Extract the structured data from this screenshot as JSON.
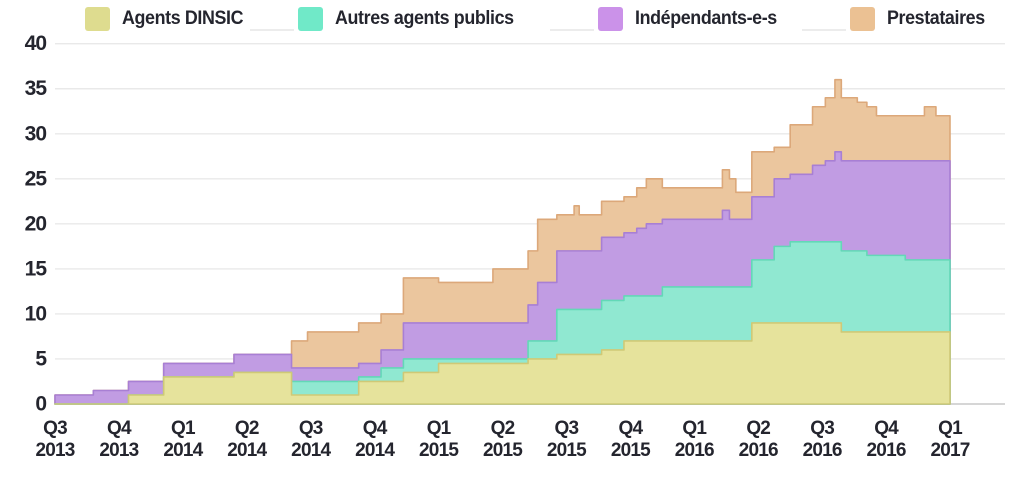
{
  "legend": {
    "items": [
      {
        "label": "Agents DINSIC",
        "color": "#dedc8f"
      },
      {
        "label": "Autres agents publics",
        "color": "#70e9c8"
      },
      {
        "label": "Indépendants-e-s",
        "color": "#cb92e9"
      },
      {
        "label": "Prestataires",
        "color": "#ebc193"
      }
    ]
  },
  "y_axis": {
    "ticks": [
      0,
      5,
      10,
      15,
      20,
      25,
      30,
      35,
      40
    ]
  },
  "x_axis": {
    "ticks": [
      {
        "quarter": "Q3",
        "year": "2013"
      },
      {
        "quarter": "Q4",
        "year": "2013"
      },
      {
        "quarter": "Q1",
        "year": "2014"
      },
      {
        "quarter": "Q2",
        "year": "2014"
      },
      {
        "quarter": "Q3",
        "year": "2014"
      },
      {
        "quarter": "Q4",
        "year": "2014"
      },
      {
        "quarter": "Q1",
        "year": "2015"
      },
      {
        "quarter": "Q2",
        "year": "2015"
      },
      {
        "quarter": "Q3",
        "year": "2015"
      },
      {
        "quarter": "Q4",
        "year": "2015"
      },
      {
        "quarter": "Q1",
        "year": "2016"
      },
      {
        "quarter": "Q2",
        "year": "2016"
      },
      {
        "quarter": "Q3",
        "year": "2016"
      },
      {
        "quarter": "Q4",
        "year": "2016"
      },
      {
        "quarter": "Q1",
        "year": "2017"
      }
    ]
  },
  "chart_data": {
    "type": "area",
    "stacked": true,
    "interpolation": "step-after",
    "title": "",
    "xlabel": "",
    "ylabel": "",
    "ylim": [
      0,
      40
    ],
    "grid": true,
    "legend_position": "top",
    "x_unit": "quarters since Q3 2013 (fractional = intra-quarter step changes)",
    "x_range": [
      0,
      14
    ],
    "x": [
      0.0,
      0.6,
      1.15,
      1.7,
      2.8,
      3.7,
      3.95,
      4.75,
      5.1,
      5.45,
      6.0,
      6.85,
      7.4,
      7.55,
      7.85,
      8.12,
      8.2,
      8.55,
      8.9,
      9.1,
      9.25,
      9.5,
      10.44,
      10.55,
      10.65,
      10.9,
      11.25,
      11.5,
      11.85,
      12.05,
      12.2,
      12.3,
      12.55,
      12.7,
      12.85,
      13.3,
      13.6,
      13.78
    ],
    "series": [
      {
        "name": "Agents DINSIC",
        "fill": "#e6e39c",
        "stroke": "#cfc976",
        "values": [
          0,
          0,
          1,
          3,
          3.5,
          1,
          1,
          2.5,
          2.5,
          3.5,
          4.5,
          4.5,
          5,
          5,
          5.5,
          5.5,
          5.5,
          6,
          7,
          7,
          7,
          7,
          7,
          7,
          7,
          9,
          9,
          9,
          9,
          9,
          9,
          8,
          8,
          8,
          8,
          8,
          8,
          8
        ]
      },
      {
        "name": "Autres agents publics",
        "fill": "#90e8d1",
        "stroke": "#63d8b7",
        "values": [
          0,
          0,
          0,
          0,
          0,
          1.5,
          1.5,
          0.5,
          1.5,
          1.5,
          0.5,
          0.5,
          2,
          2,
          5,
          5,
          5,
          5.5,
          5,
          5,
          5,
          6,
          6,
          6,
          6,
          7,
          8.5,
          9,
          9,
          9,
          9,
          9,
          9,
          8.5,
          8.5,
          8,
          8,
          8
        ]
      },
      {
        "name": "Indépendants-e-s",
        "fill": "#c19ce3",
        "stroke": "#a87fd4",
        "values": [
          1,
          1.5,
          1.5,
          1.5,
          2,
          1.5,
          1.5,
          1.5,
          2,
          4,
          4,
          4,
          4,
          6.5,
          6.5,
          6.5,
          6.5,
          7,
          7,
          7.5,
          8,
          7.5,
          8.5,
          7.5,
          7.5,
          7,
          7.5,
          7.5,
          8.5,
          9,
          10,
          10,
          10,
          10.5,
          10.5,
          11,
          11,
          11
        ]
      },
      {
        "name": "Prestataires",
        "fill": "#ebc69e",
        "stroke": "#dca87a",
        "values": [
          0,
          0,
          0,
          0,
          0,
          3,
          4,
          4.5,
          4,
          5,
          4.5,
          6,
          6,
          7,
          4,
          5,
          4,
          4,
          4,
          4.5,
          5,
          3.5,
          4.5,
          4.5,
          3,
          5,
          3.5,
          5.5,
          6.5,
          7,
          8,
          7,
          6.5,
          6,
          5,
          5,
          6,
          5
        ]
      }
    ]
  }
}
